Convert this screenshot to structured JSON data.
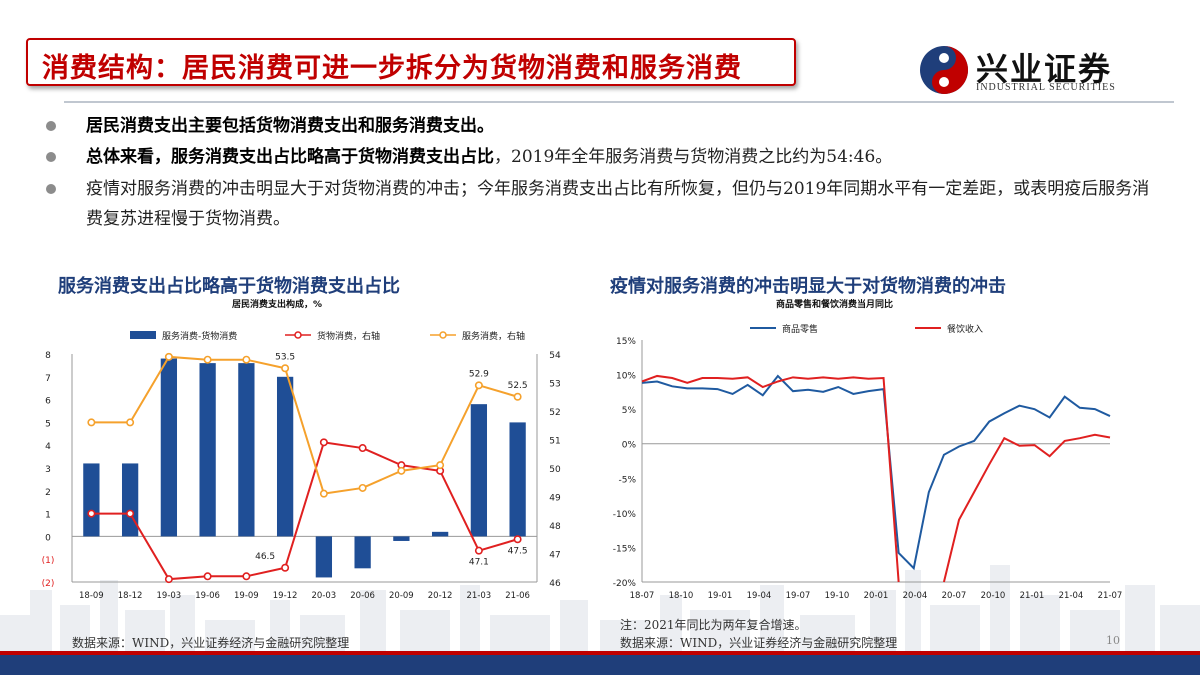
{
  "header": {
    "title": "消费结构：居民消费可进一步拆分为货物消费和服务消费",
    "logo_cn": "兴业证券",
    "logo_en": "INDUSTRIAL SECURITIES"
  },
  "bullets": [
    {
      "bold": "居民消费支出主要包括货物消费支出和服务消费支出。",
      "rest": ""
    },
    {
      "bold": "总体来看，服务消费支出占比略高于货物消费支出占比",
      "rest": "，2019年全年服务消费与货物消费之比约为54:46。"
    },
    {
      "bold": "",
      "rest": "疫情对服务消费的冲击明显大于对货物消费的冲击；今年服务消费支出占比有所恢复，但仍与2019年同期水平有一定差距，或表明疫后服务消费复苏进程慢于货物消费。"
    }
  ],
  "left_chart": {
    "heading": "服务消费支出占比略高于货物消费支出占比",
    "subheading": "居民消费支出构成，%",
    "source": "数据来源：WIND，兴业证券经济与金融研究院整理"
  },
  "right_chart": {
    "heading": "疫情对服务消费的冲击明显大于对货物消费的冲击",
    "subheading": "商品零售和餐饮消费当月同比",
    "note": "注：2021年同比为两年复合增速。",
    "source": "数据来源：WIND，兴业证券经济与金融研究院整理"
  },
  "page_number": "10",
  "chart_data": [
    {
      "type": "bar",
      "categories": [
        "18-09",
        "18-12",
        "19-03",
        "19-06",
        "19-09",
        "19-12",
        "20-03",
        "20-06",
        "20-09",
        "20-12",
        "21-03",
        "21-06"
      ],
      "series": [
        {
          "name": "服务消费-货物消费",
          "type": "bar",
          "axis": "left",
          "color": "#1f4e96",
          "values": [
            3.2,
            3.2,
            7.8,
            7.6,
            7.6,
            7.0,
            -1.8,
            -1.4,
            -0.2,
            0.2,
            5.8,
            5.0
          ]
        },
        {
          "name": "货物消费，右轴",
          "type": "line",
          "axis": "right",
          "color": "#e02020",
          "values": [
            48.4,
            48.4,
            46.1,
            46.2,
            46.2,
            46.5,
            50.9,
            50.7,
            50.1,
            49.9,
            47.1,
            47.5
          ]
        },
        {
          "name": "服务消费，右轴",
          "type": "line",
          "axis": "right",
          "color": "#f5a12c",
          "values": [
            51.6,
            51.6,
            53.9,
            53.8,
            53.8,
            53.5,
            49.1,
            49.3,
            49.9,
            50.1,
            52.9,
            52.5
          ]
        }
      ],
      "data_labels": [
        {
          "series": "服务消费，右轴",
          "index": 5,
          "text": "53.5"
        },
        {
          "series": "货物消费，右轴",
          "index": 5,
          "text": "46.5"
        },
        {
          "series": "服务消费，右轴",
          "index": 10,
          "text": "52.9"
        },
        {
          "series": "服务消费，右轴",
          "index": 11,
          "text": "52.5"
        },
        {
          "series": "货物消费，右轴",
          "index": 10,
          "text": "47.1"
        },
        {
          "series": "货物消费，右轴",
          "index": 11,
          "text": "47.5"
        }
      ],
      "y_left": {
        "min": -2,
        "max": 8,
        "ticks": [
          "8",
          "7",
          "6",
          "5",
          "4",
          "3",
          "2",
          "1",
          "0",
          "(1)",
          "(2)"
        ]
      },
      "y_right": {
        "min": 46,
        "max": 54,
        "ticks": [
          "54",
          "53",
          "52",
          "51",
          "50",
          "49",
          "48",
          "47",
          "46"
        ]
      },
      "legend": "top",
      "grid": false
    },
    {
      "type": "line",
      "x_ticks": [
        "18-07",
        "18-10",
        "19-01",
        "19-04",
        "19-07",
        "19-10",
        "20-01",
        "20-04",
        "20-07",
        "20-10",
        "21-01",
        "21-04",
        "21-07"
      ],
      "y": {
        "min": -20,
        "max": 15,
        "ticks": [
          "15%",
          "10%",
          "5%",
          "0%",
          "-5%",
          "-10%",
          "-15%",
          "-20%"
        ]
      },
      "legend": "top",
      "grid": false,
      "series": [
        {
          "name": "商品零售",
          "color": "#1f5aa0",
          "points": [
            [
              0,
              8.8
            ],
            [
              1,
              9.0
            ],
            [
              2,
              8.3
            ],
            [
              3,
              8.0
            ],
            [
              4,
              8.0
            ],
            [
              5,
              7.9
            ],
            [
              6,
              7.2
            ],
            [
              7,
              8.5
            ],
            [
              8,
              7.0
            ],
            [
              9,
              9.8
            ],
            [
              10,
              7.6
            ],
            [
              11,
              7.8
            ],
            [
              12,
              7.5
            ],
            [
              13,
              8.2
            ],
            [
              14,
              7.2
            ],
            [
              15,
              7.6
            ],
            [
              16,
              7.9
            ],
            [
              17,
              -15.8
            ],
            [
              18,
              -18.0
            ],
            [
              19,
              -7.0
            ],
            [
              20,
              -1.6
            ],
            [
              21,
              -0.4
            ],
            [
              22,
              0.4
            ],
            [
              23,
              3.2
            ],
            [
              24,
              4.4
            ],
            [
              25,
              5.5
            ],
            [
              26,
              5.0
            ],
            [
              27,
              3.8
            ],
            [
              28,
              6.8
            ],
            [
              29,
              5.2
            ],
            [
              30,
              5.0
            ],
            [
              31,
              4.0
            ]
          ]
        },
        {
          "name": "餐饮收入",
          "color": "#e02020",
          "points": [
            [
              0,
              9.0
            ],
            [
              1,
              9.8
            ],
            [
              2,
              9.5
            ],
            [
              3,
              8.8
            ],
            [
              4,
              9.5
            ],
            [
              5,
              9.5
            ],
            [
              6,
              9.4
            ],
            [
              7,
              9.6
            ],
            [
              8,
              8.2
            ],
            [
              9,
              9.0
            ],
            [
              10,
              9.6
            ],
            [
              11,
              9.4
            ],
            [
              12,
              9.6
            ],
            [
              13,
              9.4
            ],
            [
              14,
              9.6
            ],
            [
              15,
              9.4
            ],
            [
              16,
              9.5
            ],
            [
              17,
              -20.0
            ],
            [
              20,
              -20.0
            ],
            [
              21,
              -11.0
            ],
            [
              22,
              -7.0
            ],
            [
              23,
              -3.0
            ],
            [
              24,
              0.8
            ],
            [
              25,
              -0.3
            ],
            [
              26,
              -0.2
            ],
            [
              27,
              -1.8
            ],
            [
              28,
              0.4
            ],
            [
              29,
              0.8
            ],
            [
              30,
              1.3
            ],
            [
              31,
              0.9
            ]
          ]
        }
      ]
    }
  ]
}
